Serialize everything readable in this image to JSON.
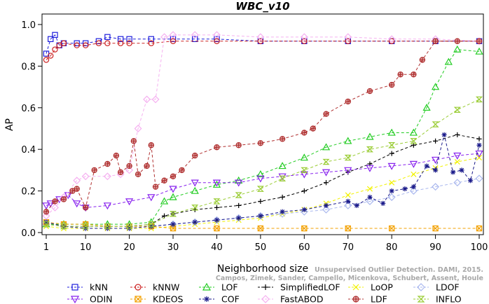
{
  "chart_data": {
    "type": "line",
    "title": "WBC_v10",
    "xlabel": "Neighborhood size",
    "ylabel": "AP",
    "xlim": [
      1,
      100
    ],
    "ylim": [
      0,
      1.0
    ],
    "xticks": [
      1,
      10,
      20,
      30,
      40,
      50,
      60,
      70,
      80,
      90,
      100
    ],
    "yticks": [
      0.0,
      0.2,
      0.4,
      0.6,
      0.8,
      1.0
    ],
    "ytick_labels": [
      "0.0",
      "0.2",
      "0.4",
      "0.6",
      "0.8",
      "1.0"
    ],
    "grid": false,
    "legend_position": "bottom",
    "watermark": {
      "line1": "Unsupervised Outlier Detection. DAMI, 2015.",
      "line2": "Campos, Zimek, Sander, Campello, Micenkova, Schubert, Assent, Houle"
    },
    "series": [
      {
        "name": "kNN",
        "color": "#1f1fdc",
        "marker": "square",
        "x": [
          1,
          2,
          3,
          4,
          5,
          8,
          10,
          13,
          15,
          18,
          20,
          25,
          30,
          35,
          40,
          50,
          60,
          70,
          80,
          90,
          100
        ],
        "y": [
          0.86,
          0.93,
          0.95,
          0.9,
          0.91,
          0.91,
          0.91,
          0.92,
          0.94,
          0.93,
          0.93,
          0.93,
          0.93,
          0.93,
          0.93,
          0.92,
          0.92,
          0.92,
          0.92,
          0.92,
          0.92
        ]
      },
      {
        "name": "kNNW",
        "color": "#cc2222",
        "marker": "circle",
        "x": [
          1,
          2,
          3,
          4,
          5,
          8,
          10,
          13,
          15,
          18,
          20,
          25,
          30,
          40,
          50,
          60,
          70,
          80,
          90,
          100
        ],
        "y": [
          0.83,
          0.85,
          0.88,
          0.9,
          0.91,
          0.9,
          0.9,
          0.91,
          0.91,
          0.91,
          0.91,
          0.91,
          0.92,
          0.92,
          0.92,
          0.92,
          0.92,
          0.92,
          0.92,
          0.92
        ]
      },
      {
        "name": "LOF",
        "color": "#22cc22",
        "marker": "triangle",
        "x": [
          1,
          5,
          10,
          15,
          20,
          25,
          28,
          30,
          35,
          40,
          45,
          50,
          55,
          60,
          65,
          70,
          75,
          80,
          85,
          88,
          90,
          93,
          95,
          100
        ],
        "y": [
          0.04,
          0.04,
          0.04,
          0.04,
          0.04,
          0.05,
          0.15,
          0.17,
          0.2,
          0.23,
          0.25,
          0.28,
          0.32,
          0.36,
          0.41,
          0.44,
          0.46,
          0.48,
          0.48,
          0.6,
          0.7,
          0.82,
          0.88,
          0.87
        ]
      },
      {
        "name": "SimplifiedLOF",
        "color": "#000000",
        "marker": "plus",
        "x": [
          1,
          5,
          10,
          15,
          20,
          25,
          28,
          30,
          35,
          40,
          45,
          50,
          55,
          60,
          65,
          70,
          75,
          80,
          85,
          90,
          95,
          100
        ],
        "y": [
          0.04,
          0.03,
          0.03,
          0.03,
          0.03,
          0.04,
          0.08,
          0.09,
          0.11,
          0.12,
          0.13,
          0.15,
          0.17,
          0.2,
          0.24,
          0.29,
          0.33,
          0.38,
          0.42,
          0.44,
          0.47,
          0.45
        ]
      },
      {
        "name": "LoOP",
        "color": "#f2f200",
        "marker": "x",
        "x": [
          1,
          5,
          10,
          15,
          20,
          25,
          30,
          35,
          40,
          45,
          50,
          55,
          60,
          65,
          70,
          75,
          80,
          85,
          90,
          95,
          100
        ],
        "y": [
          0.03,
          0.02,
          0.02,
          0.02,
          0.02,
          0.02,
          0.03,
          0.04,
          0.05,
          0.06,
          0.07,
          0.09,
          0.11,
          0.14,
          0.18,
          0.21,
          0.24,
          0.28,
          0.31,
          0.34,
          0.36
        ]
      },
      {
        "name": "LDOF",
        "color": "#aab8ee",
        "marker": "diamond",
        "x": [
          1,
          5,
          10,
          15,
          20,
          25,
          30,
          35,
          40,
          45,
          50,
          55,
          60,
          65,
          70,
          75,
          80,
          85,
          90,
          95,
          100
        ],
        "y": [
          0.04,
          0.03,
          0.03,
          0.03,
          0.03,
          0.03,
          0.04,
          0.05,
          0.06,
          0.07,
          0.08,
          0.09,
          0.1,
          0.11,
          0.13,
          0.15,
          0.17,
          0.2,
          0.22,
          0.24,
          0.26
        ]
      },
      {
        "name": "ODIN",
        "color": "#8822ee",
        "marker": "down-triangle",
        "x": [
          1,
          2,
          4,
          6,
          8,
          10,
          15,
          20,
          25,
          30,
          35,
          40,
          45,
          50,
          55,
          60,
          65,
          70,
          75,
          80,
          85,
          90,
          95,
          100
        ],
        "y": [
          0.13,
          0.14,
          0.16,
          0.18,
          0.14,
          0.12,
          0.13,
          0.15,
          0.17,
          0.21,
          0.24,
          0.24,
          0.24,
          0.26,
          0.27,
          0.28,
          0.29,
          0.3,
          0.31,
          0.32,
          0.33,
          0.35,
          0.37,
          0.38
        ]
      },
      {
        "name": "KDEOS",
        "color": "#f2a000",
        "marker": "square-x",
        "x": [
          1,
          5,
          10,
          15,
          20,
          25,
          30,
          40,
          50,
          60,
          70,
          80,
          90,
          100
        ],
        "y": [
          0.05,
          0.04,
          0.04,
          0.03,
          0.03,
          0.03,
          0.02,
          0.02,
          0.02,
          0.02,
          0.02,
          0.02,
          0.02,
          0.02
        ]
      },
      {
        "name": "COF",
        "color": "#1a1a8a",
        "marker": "star",
        "x": [
          1,
          5,
          10,
          15,
          20,
          25,
          30,
          35,
          40,
          45,
          50,
          55,
          60,
          65,
          70,
          72,
          75,
          78,
          80,
          83,
          85,
          88,
          90,
          92,
          94,
          96,
          98,
          100
        ],
        "y": [
          0.05,
          0.03,
          0.02,
          0.02,
          0.02,
          0.03,
          0.04,
          0.05,
          0.06,
          0.07,
          0.08,
          0.1,
          0.11,
          0.13,
          0.15,
          0.13,
          0.17,
          0.14,
          0.2,
          0.21,
          0.22,
          0.32,
          0.3,
          0.47,
          0.29,
          0.3,
          0.25,
          0.42
        ]
      },
      {
        "name": "FastABOD",
        "color": "#f5b0f0",
        "marker": "diamond",
        "x": [
          1,
          3,
          5,
          8,
          10,
          15,
          18,
          20,
          22,
          24,
          26,
          28,
          30,
          35,
          40,
          50,
          60,
          70,
          80,
          90,
          100
        ],
        "y": [
          0.08,
          0.12,
          0.17,
          0.25,
          0.27,
          0.27,
          0.28,
          0.3,
          0.5,
          0.64,
          0.64,
          0.94,
          0.95,
          0.95,
          0.95,
          0.94,
          0.94,
          0.94,
          0.93,
          0.93,
          0.92
        ]
      },
      {
        "name": "LDF",
        "color": "#b03030",
        "marker": "circle-plus",
        "x": [
          1,
          3,
          5,
          7,
          8,
          10,
          12,
          15,
          17,
          18,
          20,
          21,
          22,
          24,
          25,
          26,
          28,
          30,
          32,
          35,
          40,
          45,
          50,
          55,
          60,
          62,
          65,
          70,
          75,
          80,
          82,
          85,
          87,
          90,
          95,
          100
        ],
        "y": [
          0.1,
          0.15,
          0.16,
          0.2,
          0.21,
          0.12,
          0.3,
          0.33,
          0.37,
          0.29,
          0.32,
          0.44,
          0.28,
          0.32,
          0.42,
          0.22,
          0.25,
          0.27,
          0.3,
          0.37,
          0.41,
          0.42,
          0.43,
          0.45,
          0.48,
          0.5,
          0.57,
          0.63,
          0.68,
          0.71,
          0.76,
          0.76,
          0.83,
          0.92,
          0.92,
          0.92
        ]
      },
      {
        "name": "INFLO",
        "color": "#99cc33",
        "marker": "hourglass",
        "x": [
          1,
          5,
          10,
          15,
          20,
          25,
          30,
          35,
          40,
          45,
          50,
          55,
          60,
          65,
          70,
          75,
          80,
          85,
          90,
          95,
          100
        ],
        "y": [
          0.04,
          0.03,
          0.03,
          0.03,
          0.03,
          0.04,
          0.09,
          0.12,
          0.15,
          0.18,
          0.21,
          0.26,
          0.3,
          0.34,
          0.36,
          0.4,
          0.42,
          0.44,
          0.52,
          0.59,
          0.64
        ]
      }
    ]
  }
}
